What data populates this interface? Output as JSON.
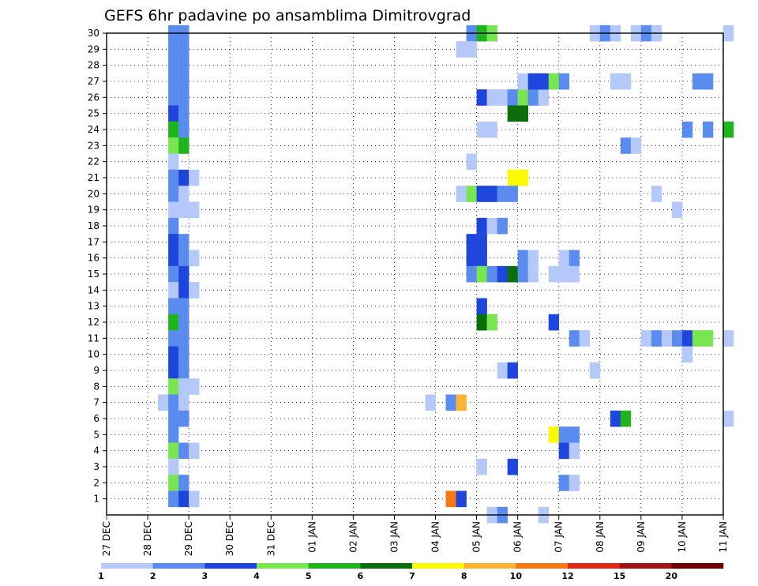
{
  "chart_data": {
    "type": "heatmap",
    "title": "GEFS 6hr padavine po ansamblima Dimitrovgrad",
    "xlabel": "",
    "ylabel": "",
    "x_tick_labels": [
      "27 DEC",
      "28 DEC",
      "29 DEC",
      "30 DEC",
      "31 DEC",
      "01 JAN",
      "02 JAN",
      "03 JAN",
      "04 JAN",
      "05 JAN",
      "06 JAN",
      "07 JAN",
      "08 JAN",
      "09 JAN",
      "10 JAN",
      "11 JAN"
    ],
    "x_range_days": [
      0,
      15
    ],
    "time_step_hours": 6,
    "y_tick_labels": [
      "1",
      "2",
      "3",
      "4",
      "5",
      "6",
      "7",
      "8",
      "9",
      "10",
      "11",
      "12",
      "13",
      "14",
      "15",
      "16",
      "17",
      "18",
      "19",
      "20",
      "21",
      "22",
      "23",
      "24",
      "25",
      "26",
      "27",
      "28",
      "29",
      "30"
    ],
    "y_range": [
      0,
      30
    ],
    "grid": "dotted",
    "colorbar": {
      "labels": [
        "1",
        "2",
        "3",
        "4",
        "5",
        "6",
        "7",
        "8",
        "10",
        "12",
        "15",
        "20"
      ],
      "colors": [
        "#b4c8fa",
        "#5a8cf0",
        "#1e46dc",
        "#78e650",
        "#1eb41e",
        "#0a6e0a",
        "#fafa00",
        "#fab432",
        "#f57814",
        "#dc2814",
        "#a01414",
        "#6e0000"
      ]
    },
    "cells_note": "each cell: [member, time index in 6-hour steps from 27 DEC 00z, colour class 1-12]",
    "cells": [
      [
        30,
        6,
        2
      ],
      [
        30,
        7,
        2
      ],
      [
        29,
        6,
        2
      ],
      [
        29,
        7,
        2
      ],
      [
        28,
        6,
        2
      ],
      [
        28,
        7,
        2
      ],
      [
        27,
        6,
        2
      ],
      [
        27,
        7,
        2
      ],
      [
        26,
        6,
        2
      ],
      [
        26,
        7,
        2
      ],
      [
        25,
        6,
        3
      ],
      [
        25,
        7,
        2
      ],
      [
        24,
        6,
        5
      ],
      [
        24,
        7,
        2
      ],
      [
        23,
        6,
        4
      ],
      [
        23,
        7,
        5
      ],
      [
        22,
        6,
        1
      ],
      [
        21,
        6,
        2
      ],
      [
        21,
        7,
        3
      ],
      [
        21,
        8,
        1
      ],
      [
        20,
        6,
        2
      ],
      [
        20,
        7,
        1
      ],
      [
        19,
        6,
        1
      ],
      [
        19,
        7,
        1
      ],
      [
        19,
        8,
        1
      ],
      [
        18,
        6,
        2
      ],
      [
        17,
        6,
        3
      ],
      [
        17,
        7,
        2
      ],
      [
        16,
        6,
        3
      ],
      [
        16,
        7,
        2
      ],
      [
        16,
        8,
        1
      ],
      [
        15,
        6,
        2
      ],
      [
        15,
        7,
        3
      ],
      [
        14,
        6,
        1
      ],
      [
        14,
        7,
        3
      ],
      [
        14,
        8,
        1
      ],
      [
        13,
        6,
        2
      ],
      [
        13,
        7,
        2
      ],
      [
        12,
        6,
        5
      ],
      [
        12,
        7,
        2
      ],
      [
        11,
        6,
        2
      ],
      [
        11,
        7,
        2
      ],
      [
        10,
        6,
        3
      ],
      [
        10,
        7,
        2
      ],
      [
        9,
        6,
        3
      ],
      [
        9,
        7,
        2
      ],
      [
        8,
        6,
        4
      ],
      [
        8,
        7,
        1
      ],
      [
        8,
        8,
        1
      ],
      [
        7,
        5,
        1
      ],
      [
        7,
        6,
        2
      ],
      [
        7,
        7,
        1
      ],
      [
        6,
        6,
        2
      ],
      [
        6,
        7,
        2
      ],
      [
        5,
        6,
        2
      ],
      [
        4,
        6,
        4
      ],
      [
        4,
        7,
        2
      ],
      [
        4,
        8,
        1
      ],
      [
        3,
        6,
        1
      ],
      [
        2,
        6,
        4
      ],
      [
        2,
        7,
        2
      ],
      [
        1,
        6,
        2
      ],
      [
        1,
        7,
        3
      ],
      [
        1,
        8,
        1
      ],
      [
        30,
        35,
        2
      ],
      [
        30,
        36,
        5
      ],
      [
        30,
        37,
        4
      ],
      [
        29,
        34,
        1
      ],
      [
        29,
        35,
        1
      ],
      [
        26,
        36,
        3
      ],
      [
        26,
        37,
        1
      ],
      [
        26,
        38,
        1
      ],
      [
        26,
        39,
        2
      ],
      [
        26,
        40,
        4
      ],
      [
        26,
        41,
        2
      ],
      [
        26,
        42,
        1
      ],
      [
        27,
        40,
        1
      ],
      [
        27,
        41,
        3
      ],
      [
        27,
        42,
        3
      ],
      [
        27,
        43,
        4
      ],
      [
        27,
        44,
        2
      ],
      [
        25,
        39,
        6
      ],
      [
        25,
        40,
        6
      ],
      [
        24,
        36,
        1
      ],
      [
        24,
        37,
        1
      ],
      [
        22,
        35,
        1
      ],
      [
        21,
        39,
        7
      ],
      [
        21,
        40,
        7
      ],
      [
        20,
        34,
        1
      ],
      [
        20,
        35,
        4
      ],
      [
        20,
        36,
        3
      ],
      [
        20,
        37,
        3
      ],
      [
        20,
        38,
        2
      ],
      [
        20,
        39,
        2
      ],
      [
        18,
        36,
        3
      ],
      [
        18,
        37,
        1
      ],
      [
        18,
        38,
        2
      ],
      [
        17,
        35,
        3
      ],
      [
        17,
        36,
        3
      ],
      [
        16,
        35,
        3
      ],
      [
        16,
        36,
        3
      ],
      [
        16,
        40,
        2
      ],
      [
        16,
        41,
        1
      ],
      [
        16,
        44,
        1
      ],
      [
        16,
        45,
        2
      ],
      [
        15,
        35,
        2
      ],
      [
        15,
        36,
        4
      ],
      [
        15,
        37,
        2
      ],
      [
        15,
        38,
        3
      ],
      [
        15,
        39,
        6
      ],
      [
        15,
        40,
        2
      ],
      [
        15,
        41,
        1
      ],
      [
        15,
        43,
        1
      ],
      [
        15,
        44,
        1
      ],
      [
        15,
        45,
        1
      ],
      [
        13,
        36,
        3
      ],
      [
        12,
        36,
        6
      ],
      [
        12,
        37,
        4
      ],
      [
        12,
        43,
        3
      ],
      [
        9,
        38,
        1
      ],
      [
        9,
        39,
        3
      ],
      [
        7,
        31,
        1
      ],
      [
        7,
        33,
        2
      ],
      [
        7,
        34,
        8
      ],
      [
        5,
        43,
        7
      ],
      [
        5,
        44,
        2
      ],
      [
        5,
        45,
        2
      ],
      [
        4,
        44,
        3
      ],
      [
        4,
        45,
        1
      ],
      [
        3,
        36,
        1
      ],
      [
        3,
        39,
        3
      ],
      [
        2,
        44,
        2
      ],
      [
        2,
        45,
        1
      ],
      [
        1,
        33,
        9
      ],
      [
        1,
        34,
        3
      ],
      [
        0,
        37,
        1
      ],
      [
        0,
        38,
        2
      ],
      [
        0,
        42,
        1
      ],
      [
        30,
        47,
        1
      ],
      [
        30,
        48,
        2
      ],
      [
        30,
        49,
        1
      ],
      [
        30,
        51,
        1
      ],
      [
        30,
        52,
        2
      ],
      [
        30,
        53,
        1
      ],
      [
        30,
        60,
        1
      ],
      [
        27,
        49,
        1
      ],
      [
        27,
        50,
        1
      ],
      [
        27,
        57,
        2
      ],
      [
        27,
        58,
        2
      ],
      [
        24,
        56,
        2
      ],
      [
        24,
        58,
        2
      ],
      [
        24,
        60,
        5
      ],
      [
        23,
        50,
        2
      ],
      [
        23,
        51,
        1
      ],
      [
        20,
        53,
        1
      ],
      [
        19,
        55,
        1
      ],
      [
        11,
        45,
        2
      ],
      [
        11,
        46,
        1
      ],
      [
        11,
        52,
        1
      ],
      [
        11,
        53,
        2
      ],
      [
        11,
        54,
        1
      ],
      [
        11,
        55,
        2
      ],
      [
        11,
        56,
        3
      ],
      [
        11,
        57,
        4
      ],
      [
        11,
        58,
        4
      ],
      [
        11,
        60,
        1
      ],
      [
        10,
        56,
        1
      ],
      [
        9,
        47,
        1
      ],
      [
        6,
        49,
        3
      ],
      [
        6,
        50,
        5
      ],
      [
        6,
        60,
        1
      ]
    ]
  }
}
